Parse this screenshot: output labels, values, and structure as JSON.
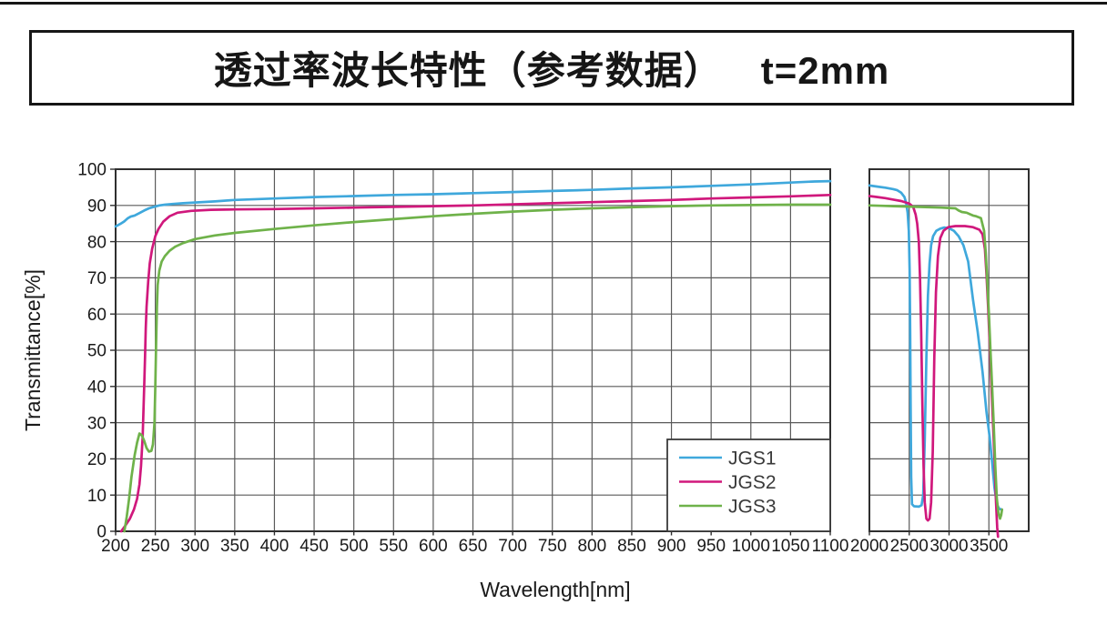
{
  "title": {
    "part1": "透过率波长特性（参考数据）",
    "part2": "t=2mm"
  },
  "chart_data": {
    "type": "line",
    "title": "透过率波长特性（参考数据） t=2mm",
    "xlabel": "Wavelength[nm]",
    "ylabel": "Transmittance[%]",
    "ylim": [
      0,
      100
    ],
    "y_ticks": [
      0,
      10,
      20,
      30,
      40,
      50,
      60,
      70,
      80,
      90,
      100
    ],
    "grid": true,
    "panels": [
      {
        "id": "uv-vis",
        "xlim": [
          200,
          1100
        ],
        "grid_step": 50,
        "x_ticks": [
          200,
          250,
          300,
          350,
          400,
          450,
          500,
          550,
          600,
          650,
          700,
          750,
          800,
          850,
          900,
          950,
          1000,
          1050,
          1100
        ]
      },
      {
        "id": "ir",
        "xlim": [
          2000,
          4000
        ],
        "grid_step": 500,
        "x_ticks": [
          2000,
          2500,
          3000,
          3500
        ]
      }
    ],
    "legend": {
      "position": "bottom-right",
      "entries": [
        "JGS1",
        "JGS2",
        "JGS3"
      ]
    },
    "colors": {
      "JGS1": "#3fa8dc",
      "JGS2": "#d0187c",
      "JGS3": "#6fb24a"
    },
    "series": [
      {
        "name": "JGS1",
        "color": "#3fa8dc",
        "points_uv_vis": [
          [
            200,
            84.2
          ],
          [
            206,
            84.9
          ],
          [
            211,
            85.6
          ],
          [
            215,
            86.4
          ],
          [
            219,
            86.9
          ],
          [
            224,
            87.2
          ],
          [
            230,
            87.9
          ],
          [
            236,
            88.6
          ],
          [
            242,
            89.2
          ],
          [
            248,
            89.6
          ],
          [
            255,
            90.0
          ],
          [
            262,
            90.2
          ],
          [
            272,
            90.4
          ],
          [
            285,
            90.6
          ],
          [
            300,
            90.8
          ],
          [
            325,
            91.1
          ],
          [
            350,
            91.5
          ],
          [
            400,
            91.9
          ],
          [
            450,
            92.3
          ],
          [
            500,
            92.6
          ],
          [
            550,
            92.9
          ],
          [
            600,
            93.1
          ],
          [
            650,
            93.4
          ],
          [
            700,
            93.7
          ],
          [
            750,
            94.0
          ],
          [
            800,
            94.3
          ],
          [
            850,
            94.7
          ],
          [
            900,
            95.0
          ],
          [
            950,
            95.4
          ],
          [
            1000,
            95.8
          ],
          [
            1050,
            96.3
          ],
          [
            1080,
            96.6
          ],
          [
            1100,
            96.7
          ]
        ],
        "points_ir": [
          [
            2000,
            95.5
          ],
          [
            2100,
            95.2
          ],
          [
            2200,
            94.9
          ],
          [
            2300,
            94.5
          ],
          [
            2350,
            94.2
          ],
          [
            2400,
            93.5
          ],
          [
            2440,
            92.3
          ],
          [
            2460,
            90.8
          ],
          [
            2480,
            88
          ],
          [
            2495,
            83
          ],
          [
            2505,
            72
          ],
          [
            2512,
            55
          ],
          [
            2518,
            35
          ],
          [
            2525,
            15
          ],
          [
            2535,
            7.5
          ],
          [
            2560,
            6.9
          ],
          [
            2620,
            6.8
          ],
          [
            2655,
            7.2
          ],
          [
            2675,
            10
          ],
          [
            2695,
            25
          ],
          [
            2715,
            48
          ],
          [
            2735,
            65
          ],
          [
            2755,
            74
          ],
          [
            2775,
            79
          ],
          [
            2800,
            81.5
          ],
          [
            2840,
            83
          ],
          [
            2890,
            83.6
          ],
          [
            2940,
            83.9
          ],
          [
            3000,
            83.7
          ],
          [
            3060,
            83
          ],
          [
            3120,
            81.5
          ],
          [
            3180,
            79
          ],
          [
            3240,
            74.5
          ],
          [
            3300,
            64
          ],
          [
            3360,
            55
          ],
          [
            3420,
            44
          ],
          [
            3470,
            33
          ],
          [
            3510,
            26
          ],
          [
            3540,
            19
          ],
          [
            3570,
            12
          ],
          [
            3600,
            7.5
          ],
          [
            3630,
            6.2
          ],
          [
            3660,
            6
          ]
        ]
      },
      {
        "name": "JGS2",
        "color": "#d0187c",
        "points_uv_vis": [
          [
            207,
            0
          ],
          [
            212,
            1.5
          ],
          [
            218,
            3.5
          ],
          [
            223,
            6
          ],
          [
            227,
            9
          ],
          [
            230,
            13
          ],
          [
            232,
            18
          ],
          [
            234,
            26
          ],
          [
            236,
            40
          ],
          [
            237,
            48
          ],
          [
            238,
            56
          ],
          [
            239,
            62
          ],
          [
            241,
            69
          ],
          [
            243,
            74
          ],
          [
            246,
            78
          ],
          [
            250,
            81.5
          ],
          [
            254,
            83.5
          ],
          [
            260,
            85.5
          ],
          [
            268,
            87
          ],
          [
            278,
            88
          ],
          [
            295,
            88.5
          ],
          [
            320,
            88.8
          ],
          [
            350,
            88.9
          ],
          [
            400,
            89.0
          ],
          [
            450,
            89.2
          ],
          [
            500,
            89.4
          ],
          [
            550,
            89.6
          ],
          [
            600,
            89.8
          ],
          [
            650,
            90.0
          ],
          [
            700,
            90.3
          ],
          [
            750,
            90.6
          ],
          [
            800,
            90.9
          ],
          [
            850,
            91.2
          ],
          [
            900,
            91.5
          ],
          [
            950,
            91.9
          ],
          [
            1000,
            92.2
          ],
          [
            1050,
            92.5
          ],
          [
            1100,
            92.9
          ]
        ],
        "points_ir": [
          [
            2000,
            92.6
          ],
          [
            2100,
            92.3
          ],
          [
            2200,
            92.0
          ],
          [
            2300,
            91.6
          ],
          [
            2400,
            91.2
          ],
          [
            2500,
            90.5
          ],
          [
            2550,
            89.6
          ],
          [
            2580,
            87.5
          ],
          [
            2600,
            85
          ],
          [
            2620,
            80
          ],
          [
            2635,
            70
          ],
          [
            2650,
            55
          ],
          [
            2665,
            35
          ],
          [
            2680,
            18
          ],
          [
            2695,
            8
          ],
          [
            2715,
            3.5
          ],
          [
            2735,
            3
          ],
          [
            2755,
            3.5
          ],
          [
            2775,
            8
          ],
          [
            2795,
            22
          ],
          [
            2815,
            48
          ],
          [
            2835,
            66
          ],
          [
            2860,
            76
          ],
          [
            2890,
            81
          ],
          [
            2930,
            83
          ],
          [
            2990,
            84
          ],
          [
            3080,
            84.3
          ],
          [
            3200,
            84.3
          ],
          [
            3300,
            84.0
          ],
          [
            3380,
            83.3
          ],
          [
            3420,
            82
          ],
          [
            3450,
            78
          ],
          [
            3470,
            71
          ],
          [
            3490,
            62
          ],
          [
            3510,
            52
          ],
          [
            3530,
            41
          ],
          [
            3550,
            31
          ],
          [
            3570,
            20
          ],
          [
            3590,
            8
          ],
          [
            3605,
            1
          ],
          [
            3615,
            -1.5
          ]
        ]
      },
      {
        "name": "JGS3",
        "color": "#6fb24a",
        "points_uv_vis": [
          [
            211,
            0
          ],
          [
            214,
            4
          ],
          [
            217,
            9
          ],
          [
            220,
            15
          ],
          [
            224,
            21
          ],
          [
            227,
            24.5
          ],
          [
            230,
            27
          ],
          [
            233,
            26.5
          ],
          [
            236,
            25
          ],
          [
            239,
            23
          ],
          [
            242,
            22
          ],
          [
            245,
            22.2
          ],
          [
            247,
            24
          ],
          [
            249,
            30
          ],
          [
            250,
            40
          ],
          [
            251,
            52
          ],
          [
            252,
            62
          ],
          [
            253,
            68
          ],
          [
            255,
            72
          ],
          [
            258,
            74.5
          ],
          [
            262,
            76
          ],
          [
            268,
            77.5
          ],
          [
            275,
            78.6
          ],
          [
            285,
            79.6
          ],
          [
            300,
            80.7
          ],
          [
            325,
            81.7
          ],
          [
            350,
            82.4
          ],
          [
            400,
            83.5
          ],
          [
            450,
            84.5
          ],
          [
            500,
            85.4
          ],
          [
            550,
            86.2
          ],
          [
            600,
            87.0
          ],
          [
            650,
            87.7
          ],
          [
            700,
            88.3
          ],
          [
            750,
            88.8
          ],
          [
            800,
            89.2
          ],
          [
            850,
            89.5
          ],
          [
            900,
            89.8
          ],
          [
            950,
            90.0
          ],
          [
            1000,
            90.1
          ],
          [
            1050,
            90.2
          ],
          [
            1100,
            90.2
          ]
        ],
        "points_ir": [
          [
            2000,
            90.0
          ],
          [
            2150,
            89.9
          ],
          [
            2300,
            89.8
          ],
          [
            2450,
            89.7
          ],
          [
            2600,
            89.6
          ],
          [
            2750,
            89.5
          ],
          [
            2900,
            89.4
          ],
          [
            3000,
            89.3
          ],
          [
            3080,
            89.2
          ],
          [
            3120,
            88.6
          ],
          [
            3160,
            88.2
          ],
          [
            3220,
            88.0
          ],
          [
            3260,
            87.6
          ],
          [
            3300,
            87.2
          ],
          [
            3340,
            87.0
          ],
          [
            3400,
            86.5
          ],
          [
            3440,
            83
          ],
          [
            3460,
            77
          ],
          [
            3480,
            69
          ],
          [
            3500,
            60
          ],
          [
            3520,
            50
          ],
          [
            3540,
            40
          ],
          [
            3560,
            30
          ],
          [
            3580,
            18
          ],
          [
            3600,
            9
          ],
          [
            3620,
            5
          ],
          [
            3640,
            3.5
          ],
          [
            3655,
            4.5
          ],
          [
            3665,
            6
          ]
        ]
      }
    ]
  }
}
